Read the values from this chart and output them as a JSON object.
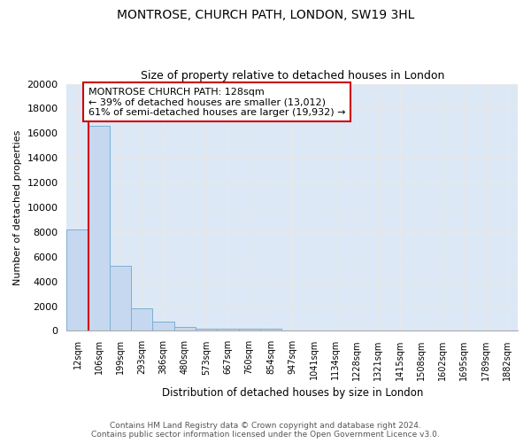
{
  "title": "MONTROSE, CHURCH PATH, LONDON, SW19 3HL",
  "subtitle": "Size of property relative to detached houses in London",
  "xlabel": "Distribution of detached houses by size in London",
  "ylabel": "Number of detached properties",
  "categories": [
    "12sqm",
    "106sqm",
    "199sqm",
    "293sqm",
    "386sqm",
    "480sqm",
    "573sqm",
    "667sqm",
    "760sqm",
    "854sqm",
    "947sqm",
    "1041sqm",
    "1134sqm",
    "1228sqm",
    "1321sqm",
    "1415sqm",
    "1508sqm",
    "1602sqm",
    "1695sqm",
    "1789sqm",
    "1882sqm"
  ],
  "values": [
    8200,
    16600,
    5300,
    1850,
    720,
    320,
    210,
    200,
    160,
    150,
    0,
    0,
    0,
    0,
    0,
    0,
    0,
    0,
    0,
    0,
    0
  ],
  "bar_color": "#c5d8f0",
  "bar_edge_color": "#7bafd4",
  "background_color": "#dce8f5",
  "grid_color": "#e8e8e8",
  "fig_background": "#ffffff",
  "property_line_x": 0.5,
  "property_sqm": 128,
  "annotation_text_line1": "MONTROSE CHURCH PATH: 128sqm",
  "annotation_text_line2": "← 39% of detached houses are smaller (13,012)",
  "annotation_text_line3": "61% of semi-detached houses are larger (19,932) →",
  "annotation_box_color": "#cc0000",
  "ylim": [
    0,
    20000
  ],
  "yticks": [
    0,
    2000,
    4000,
    6000,
    8000,
    10000,
    12000,
    14000,
    16000,
    18000,
    20000
  ],
  "footer_line1": "Contains HM Land Registry data © Crown copyright and database right 2024.",
  "footer_line2": "Contains public sector information licensed under the Open Government Licence v3.0."
}
